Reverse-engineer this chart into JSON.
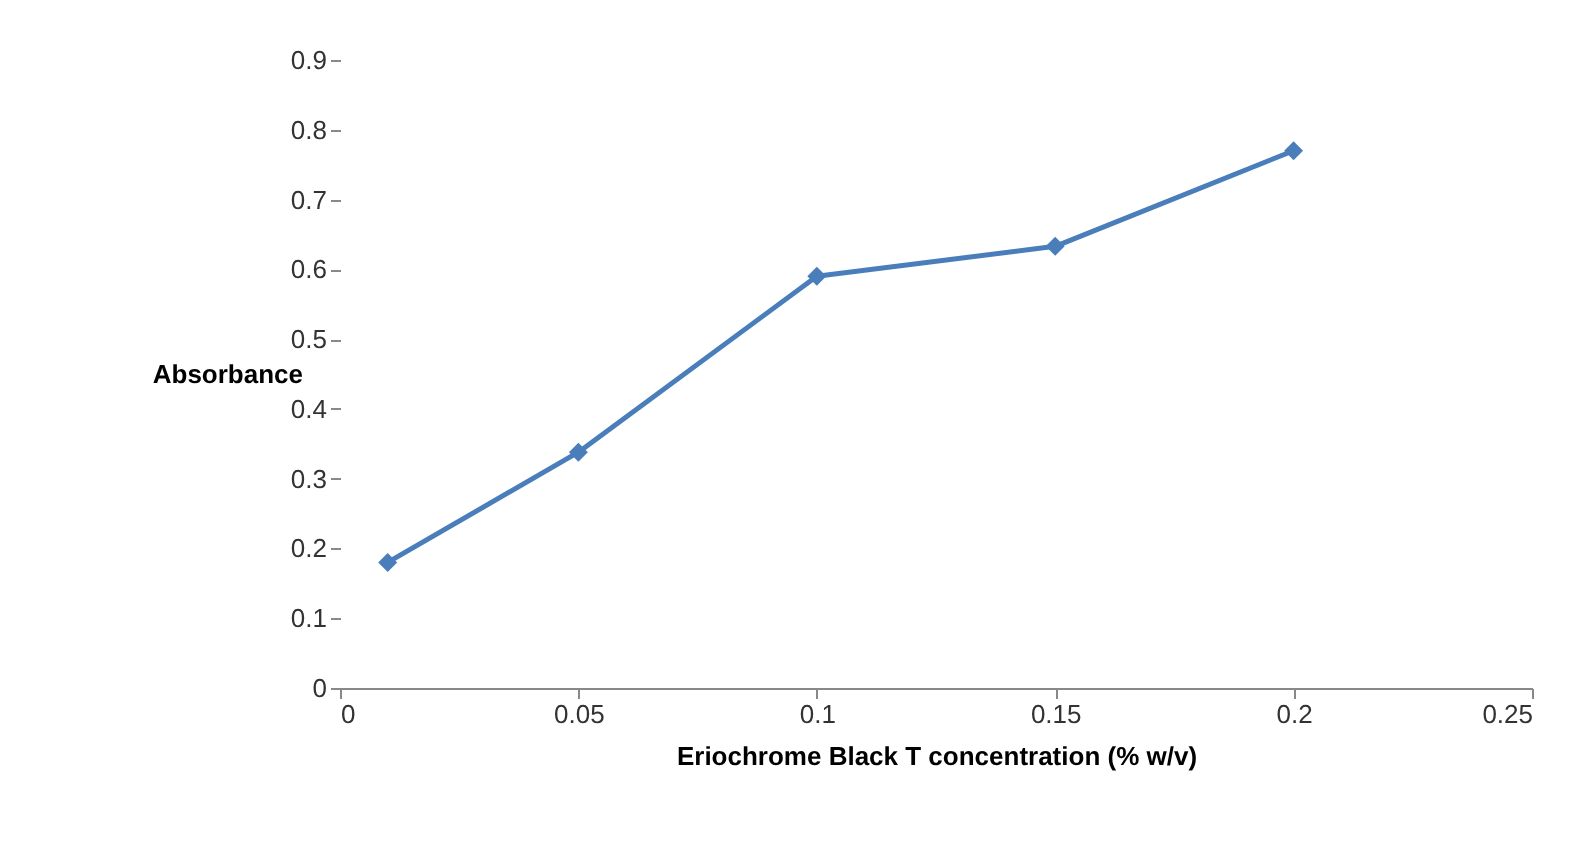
{
  "chart_data": {
    "type": "line",
    "xlabel": "Eriochrome Black T concentration (% w/v)",
    "ylabel": "Absorbance",
    "x": [
      0.01,
      0.05,
      0.1,
      0.15,
      0.2
    ],
    "series": [
      {
        "color": "#4a7ebb",
        "values": [
          0.18,
          0.338,
          0.59,
          0.633,
          0.77
        ]
      }
    ],
    "xlim": [
      0,
      0.25
    ],
    "xticks": [
      0,
      0.05,
      0.1,
      0.15,
      0.2,
      0.25
    ],
    "ylim": [
      0,
      0.9
    ],
    "yticks": [
      0,
      0.1,
      0.2,
      0.3,
      0.4,
      0.5,
      0.6,
      0.7,
      0.8,
      0.9
    ],
    "grid": false,
    "marker": "diamond",
    "line_style": "solid"
  }
}
